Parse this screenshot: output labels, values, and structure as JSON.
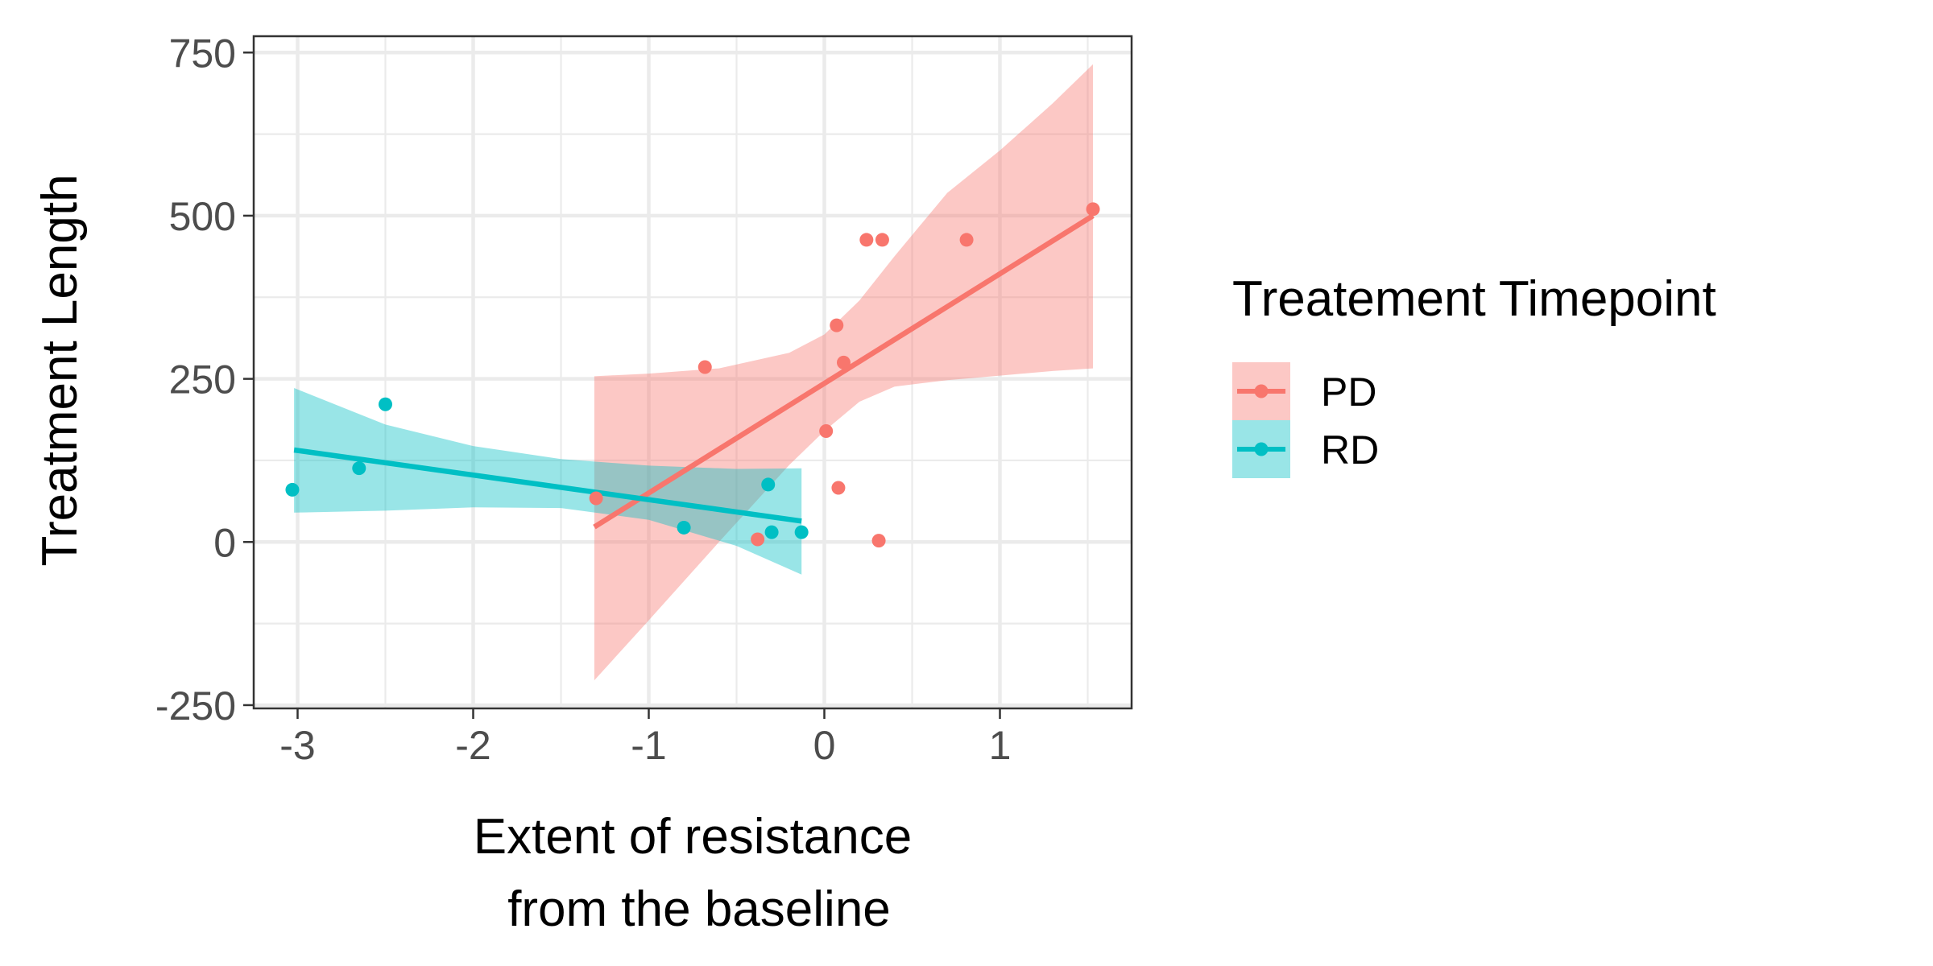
{
  "chart_data": {
    "type": "scatter",
    "xlabel_lines": [
      "Extent of resistance",
      "from the baseline"
    ],
    "ylabel": "Treatment Length",
    "xlim": [
      -3.25,
      1.75
    ],
    "ylim": [
      -255,
      775
    ],
    "x_ticks": [
      -3,
      -2,
      -1,
      0,
      1
    ],
    "x_tick_labels": [
      "-3",
      "-2",
      "-1",
      "0",
      "1"
    ],
    "y_ticks": [
      -250,
      0,
      250,
      500,
      750
    ],
    "y_tick_labels": [
      "-250",
      "0",
      "250",
      "500",
      "750"
    ],
    "grid": true,
    "legend": {
      "title": "Treatement Timepoint",
      "position": "right",
      "entries": [
        "PD",
        "RD"
      ]
    },
    "series": [
      {
        "name": "PD",
        "color": "#F8766D",
        "points": [
          {
            "x": -1.3,
            "y": 67
          },
          {
            "x": -0.68,
            "y": 268
          },
          {
            "x": -0.38,
            "y": 4
          },
          {
            "x": 0.01,
            "y": 170
          },
          {
            "x": 0.07,
            "y": 332
          },
          {
            "x": 0.08,
            "y": 83
          },
          {
            "x": 0.11,
            "y": 275
          },
          {
            "x": 0.24,
            "y": 463
          },
          {
            "x": 0.31,
            "y": 2
          },
          {
            "x": 0.33,
            "y": 463
          },
          {
            "x": 0.81,
            "y": 463
          },
          {
            "x": 1.53,
            "y": 510
          }
        ],
        "fit": {
          "x": [
            -1.31,
            1.53
          ],
          "y": [
            23,
            500
          ]
        },
        "band": {
          "x": [
            -1.31,
            -1.0,
            -0.6,
            -0.2,
            0.0,
            0.2,
            0.4,
            0.7,
            1.0,
            1.3,
            1.53
          ],
          "lower": [
            -212,
            -120,
            0,
            118,
            170,
            215,
            238,
            248,
            255,
            262,
            266
          ],
          "upper": [
            254,
            258,
            266,
            290,
            318,
            370,
            438,
            535,
            600,
            672,
            732
          ]
        }
      },
      {
        "name": "RD",
        "color": "#00BFC4",
        "points": [
          {
            "x": -3.03,
            "y": 80
          },
          {
            "x": -2.65,
            "y": 113
          },
          {
            "x": -2.5,
            "y": 211
          },
          {
            "x": -0.8,
            "y": 22
          },
          {
            "x": -0.32,
            "y": 88
          },
          {
            "x": -0.3,
            "y": 15
          },
          {
            "x": -0.13,
            "y": 15
          }
        ],
        "fit": {
          "x": [
            -3.02,
            -0.13
          ],
          "y": [
            141,
            32
          ]
        },
        "band": {
          "x": [
            -3.02,
            -2.5,
            -2.0,
            -1.5,
            -1.0,
            -0.5,
            -0.13
          ],
          "lower": [
            45,
            48,
            53,
            52,
            34,
            -6,
            -50
          ],
          "upper": [
            236,
            180,
            147,
            127,
            117,
            112,
            113
          ]
        }
      }
    ]
  }
}
